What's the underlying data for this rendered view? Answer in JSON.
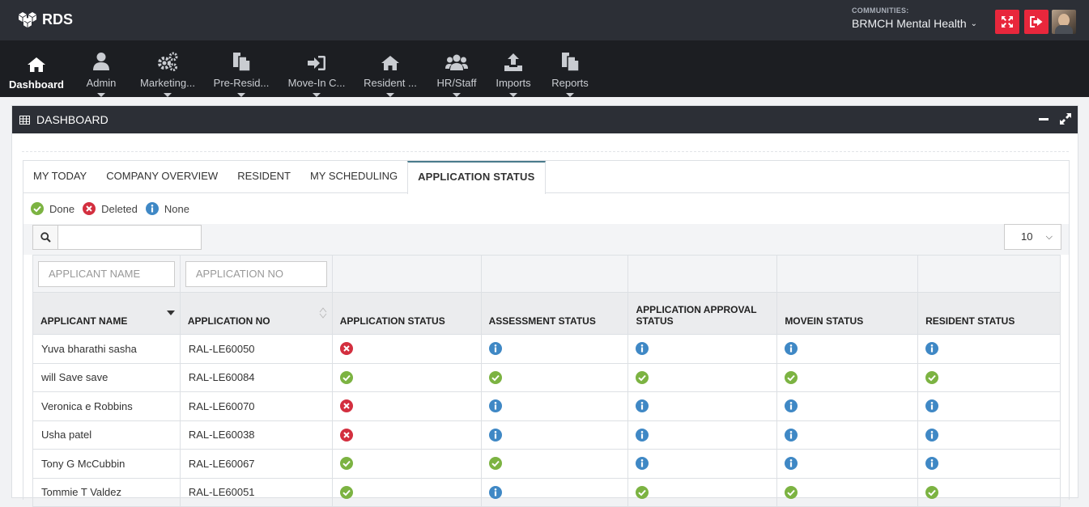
{
  "app": {
    "name": "RDS"
  },
  "community": {
    "label": "COMMUNITIES:",
    "value": "BRMCH Mental Health"
  },
  "nav": [
    {
      "label": "Dashboard",
      "icon": "home-icon",
      "active": true,
      "caret": false
    },
    {
      "label": "Admin",
      "icon": "user-icon",
      "caret": true
    },
    {
      "label": "Marketing...",
      "icon": "gears-icon",
      "caret": true
    },
    {
      "label": "Pre-Resid...",
      "icon": "copy-icon",
      "caret": true
    },
    {
      "label": "Move-In C...",
      "icon": "sign-in-icon",
      "caret": true
    },
    {
      "label": "Resident ...",
      "icon": "home-icon",
      "caret": true
    },
    {
      "label": "HR/Staff",
      "icon": "users-icon",
      "caret": true
    },
    {
      "label": "Imports",
      "icon": "upload-icon",
      "caret": true
    },
    {
      "label": "Reports",
      "icon": "copy-icon",
      "caret": true
    }
  ],
  "panel": {
    "title": "DASHBOARD"
  },
  "tabs": [
    "MY TODAY",
    "COMPANY OVERVIEW",
    "RESIDENT",
    "MY SCHEDULING",
    "APPLICATION STATUS"
  ],
  "active_tab": "APPLICATION STATUS",
  "legend": [
    {
      "label": "Done",
      "status": "done"
    },
    {
      "label": "Deleted",
      "status": "deleted"
    },
    {
      "label": "None",
      "status": "none"
    }
  ],
  "search": {
    "placeholder": ""
  },
  "page_size": "10",
  "filters": {
    "applicant_name": "APPLICANT NAME",
    "application_no": "APPLICATION NO"
  },
  "columns": [
    "APPLICANT NAME",
    "APPLICATION NO",
    "APPLICATION STATUS",
    "ASSESSMENT STATUS",
    "APPLICATION APPROVAL STATUS",
    "MOVEIN STATUS",
    "RESIDENT STATUS"
  ],
  "status_colors": {
    "done": "#7cb342",
    "deleted": "#d32f3f",
    "none": "#3f88c5"
  },
  "rows": [
    {
      "name": "Yuva bharathi sasha",
      "app_no": "RAL-LE60050",
      "statuses": [
        "deleted",
        "none",
        "none",
        "none",
        "none"
      ]
    },
    {
      "name": "will Save save",
      "app_no": "RAL-LE60084",
      "statuses": [
        "done",
        "done",
        "done",
        "done",
        "done"
      ]
    },
    {
      "name": "Veronica e Robbins",
      "app_no": "RAL-LE60070",
      "statuses": [
        "deleted",
        "none",
        "none",
        "none",
        "none"
      ]
    },
    {
      "name": "Usha patel",
      "app_no": "RAL-LE60038",
      "statuses": [
        "deleted",
        "none",
        "none",
        "none",
        "none"
      ]
    },
    {
      "name": "Tony G McCubbin",
      "app_no": "RAL-LE60067",
      "statuses": [
        "done",
        "done",
        "none",
        "none",
        "none"
      ]
    },
    {
      "name": "Tommie T Valdez",
      "app_no": "RAL-LE60051",
      "statuses": [
        "done",
        "none",
        "done",
        "done",
        "done"
      ]
    }
  ]
}
